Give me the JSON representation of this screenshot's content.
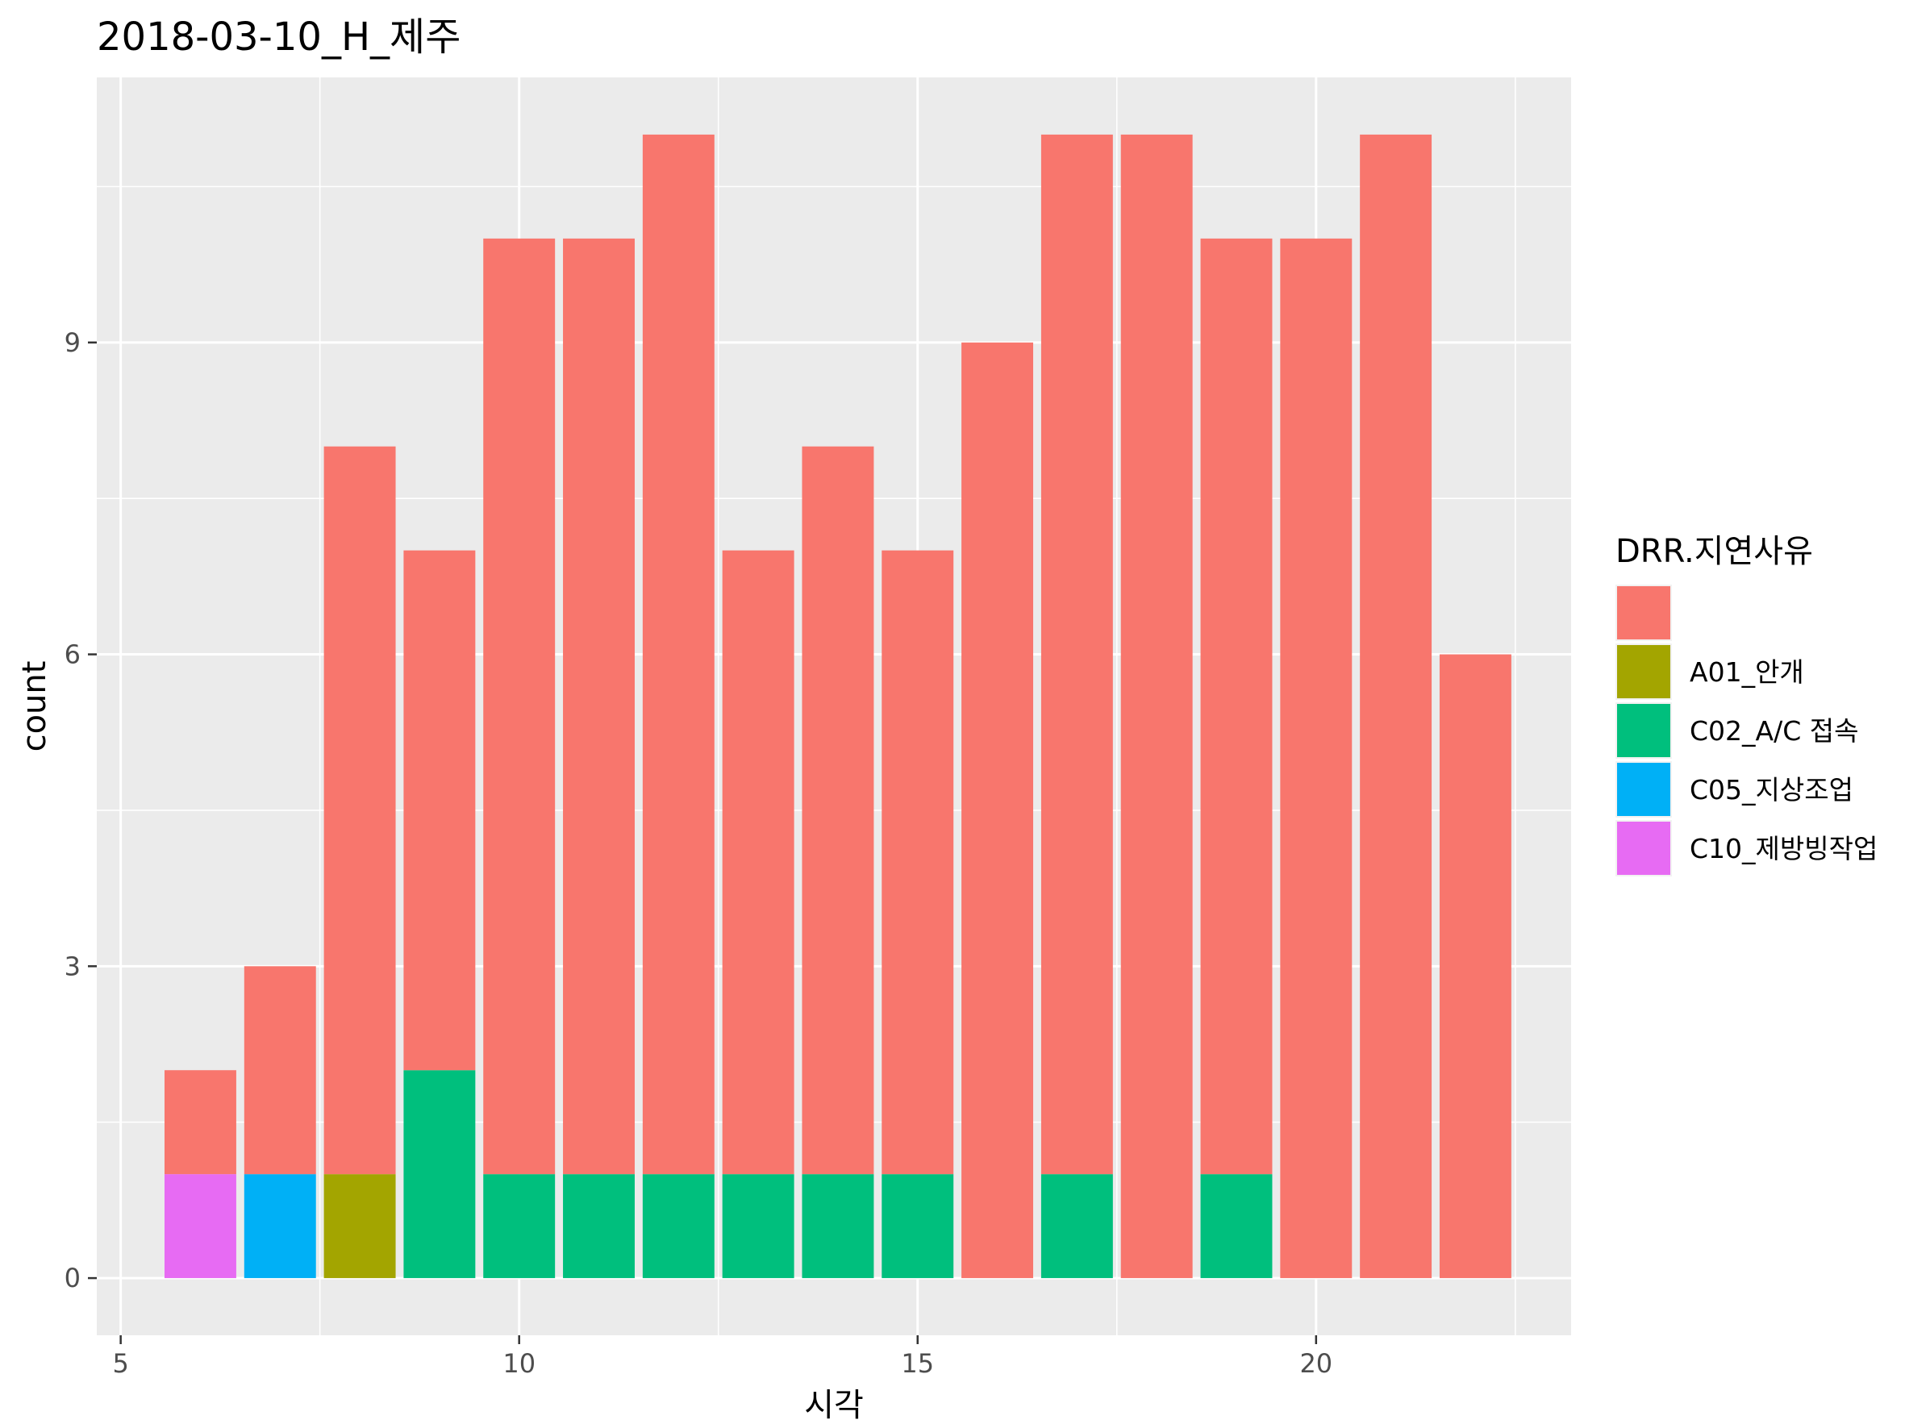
{
  "chart_data": {
    "type": "bar",
    "stacked": true,
    "title": "2018-03-10_H_제주",
    "xlabel": "시각",
    "ylabel": "count",
    "xlim": [
      4.7,
      23.2
    ],
    "ylim": [
      -0.55,
      11.55
    ],
    "x_ticks": [
      5,
      10,
      15,
      20
    ],
    "y_ticks": [
      0,
      3,
      6,
      9
    ],
    "grid": true,
    "legend_title": "DRR.지연사유",
    "legend_position": "right",
    "x": [
      6,
      7,
      8,
      9,
      10,
      11,
      12,
      13,
      14,
      15,
      16,
      17,
      18,
      19,
      20,
      21,
      22
    ],
    "series": [
      {
        "name": "C10_제방빙작업",
        "color": "#E76BF3",
        "values": [
          1,
          0,
          0,
          0,
          0,
          0,
          0,
          0,
          0,
          0,
          0,
          0,
          0,
          0,
          0,
          0,
          0
        ]
      },
      {
        "name": "C05_지상조업",
        "color": "#00B0F6",
        "values": [
          0,
          1,
          0,
          0,
          0,
          0,
          0,
          0,
          0,
          0,
          0,
          0,
          0,
          0,
          0,
          0,
          0
        ]
      },
      {
        "name": "C02_A/C 접속",
        "color": "#00BF7D",
        "values": [
          0,
          0,
          0,
          2,
          1,
          1,
          1,
          1,
          1,
          1,
          0,
          1,
          0,
          1,
          0,
          0,
          0
        ]
      },
      {
        "name": "A01_안개",
        "color": "#A3A500",
        "values": [
          0,
          0,
          1,
          0,
          0,
          0,
          0,
          0,
          0,
          0,
          0,
          0,
          0,
          0,
          0,
          0,
          0
        ]
      },
      {
        "name": "",
        "color": "#F8766D",
        "values": [
          1,
          2,
          7,
          5,
          9,
          9,
          10,
          6,
          7,
          6,
          9,
          10,
          11,
          9,
          10,
          11,
          6
        ]
      }
    ],
    "legend_order": [
      "",
      "A01_안개",
      "C02_A/C 접속",
      "C05_지상조업",
      "C10_제방빙작업"
    ]
  }
}
